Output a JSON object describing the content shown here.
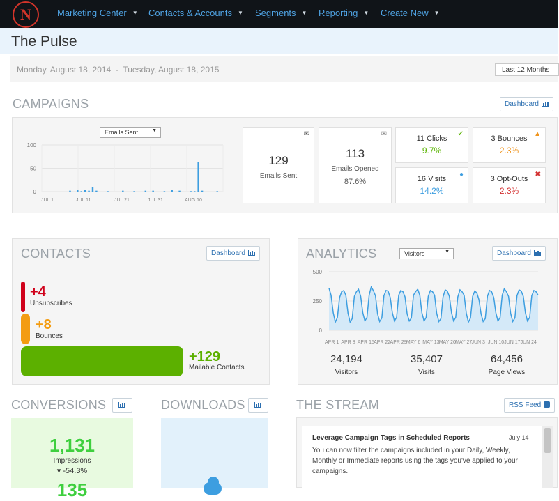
{
  "nav": {
    "logo_letter": "N",
    "items": [
      {
        "label": "Marketing Center"
      },
      {
        "label": "Contacts & Accounts"
      },
      {
        "label": "Segments"
      },
      {
        "label": "Reporting"
      },
      {
        "label": "Create New"
      }
    ]
  },
  "page": {
    "title": "The Pulse",
    "date_range": "Monday, August 18, 2014  -  Tuesday, August 18, 2015",
    "period": "Last 12 Months"
  },
  "campaigns": {
    "title": "CAMPAIGNS",
    "dashboard_label": "Dashboard",
    "metric_select": "Emails Sent",
    "stats": [
      {
        "value": "129",
        "label": "Emails Sent",
        "icon": "envelope-icon"
      },
      {
        "value": "113",
        "label": "Emails Opened",
        "pct": "87.6%",
        "icon": "envelope-open-icon"
      }
    ],
    "small_stats": [
      {
        "label": "11 Clicks",
        "pct": "9.7%",
        "pct_color": "#59b300",
        "icon": "check-icon",
        "icon_color": "#59b300"
      },
      {
        "label": "3 Bounces",
        "pct": "2.3%",
        "pct_color": "#f0951e",
        "icon": "warning-icon",
        "icon_color": "#f0951e"
      },
      {
        "label": "16 Visits",
        "pct": "14.2%",
        "pct_color": "#3d9ee0",
        "icon": "globe-icon",
        "icon_color": "#3d9ee0"
      },
      {
        "label": "3 Opt-Outs",
        "pct": "2.3%",
        "pct_color": "#d32f2f",
        "icon": "close-icon",
        "icon_color": "#d32f2f"
      }
    ]
  },
  "contacts": {
    "title": "CONTACTS",
    "dashboard_label": "Dashboard",
    "rows": [
      {
        "value": "+4",
        "label": "Unsubscribes",
        "color": "#d0021b"
      },
      {
        "value": "+8",
        "label": "Bounces",
        "color": "#f39c12"
      },
      {
        "value": "+129",
        "label": "Mailable Contacts",
        "color": "#5cb000"
      }
    ]
  },
  "analytics": {
    "title": "ANALYTICS",
    "metric_select": "Visitors",
    "dashboard_label": "Dashboard",
    "stats": [
      {
        "value": "24,194",
        "label": "Visitors"
      },
      {
        "value": "35,407",
        "label": "Visits"
      },
      {
        "value": "64,456",
        "label": "Page Views"
      }
    ]
  },
  "conversions": {
    "title": "CONVERSIONS",
    "impressions_value": "1,131",
    "impressions_label": "Impressions",
    "impressions_change": "▾ -54.3%",
    "second_value": "135"
  },
  "downloads": {
    "title": "DOWNLOADS"
  },
  "stream": {
    "title": "THE STREAM",
    "rss_label": "RSS Feed",
    "item": {
      "title": "Leverage Campaign Tags in Scheduled Reports",
      "date": "July 14",
      "body_lines": [
        "You can now filter the campaigns included in your Daily, Weekly,",
        "Monthly or Immediate reports using the tags you've applied to your",
        "campaigns."
      ]
    }
  },
  "chart_data": [
    {
      "type": "bar",
      "title": "",
      "ylim": [
        0,
        100
      ],
      "yticks": [
        "100",
        "50",
        "0"
      ],
      "x_tick_labels": [
        "JUL 1",
        "JUL 11",
        "JUL 21",
        "JUL 31",
        "AUG 10"
      ],
      "x_days": [
        1,
        2,
        3,
        4,
        5,
        6,
        7,
        8,
        9,
        10,
        11,
        12,
        13,
        14,
        15,
        16,
        17,
        18,
        19,
        20,
        21,
        22,
        23,
        24,
        25,
        26,
        27,
        28,
        29,
        30,
        31,
        32,
        33,
        34,
        35,
        36,
        37,
        38,
        39,
        40,
        41,
        42,
        43,
        44,
        45,
        46,
        47,
        48
      ],
      "values": [
        0,
        0,
        0,
        0,
        0,
        0,
        0,
        2,
        0,
        3,
        1,
        3,
        2,
        9,
        2,
        0,
        0,
        1,
        0,
        0,
        0,
        2,
        0,
        0,
        1,
        0,
        0,
        2,
        0,
        2,
        0,
        0,
        1,
        0,
        3,
        0,
        2,
        0,
        0,
        1,
        1,
        63,
        2,
        0,
        0,
        0,
        1,
        0
      ],
      "color": "#3d9ee0",
      "grid": true
    },
    {
      "type": "area",
      "title": "",
      "ylim": [
        0,
        500
      ],
      "yticks": [
        "500",
        "250",
        "0"
      ],
      "x_tick_labels": [
        "APR 1",
        "APR 8",
        "APR 15",
        "APR 22",
        "APR 29",
        "MAY 6",
        "MAY 13",
        "MAY 20",
        "MAY 27",
        "JUN 3",
        "JUN 10",
        "JUN 17",
        "JUN 24"
      ],
      "values": [
        360,
        300,
        150,
        70,
        110,
        280,
        330,
        340,
        300,
        145,
        70,
        100,
        290,
        330,
        350,
        290,
        150,
        80,
        110,
        300,
        370,
        340,
        295,
        140,
        75,
        105,
        295,
        340,
        335,
        280,
        150,
        80,
        110,
        300,
        340,
        330,
        285,
        140,
        80,
        105,
        300,
        330,
        350,
        300,
        150,
        80,
        110,
        290,
        340,
        330,
        300,
        145,
        75,
        100,
        285,
        345,
        335,
        290,
        150,
        80,
        110,
        285,
        345,
        330,
        300,
        145,
        70,
        105,
        290,
        335,
        320,
        260,
        140,
        75,
        100,
        290,
        340,
        330,
        280,
        150,
        80,
        110,
        300,
        355,
        330,
        290,
        145,
        75,
        105,
        295,
        345,
        335,
        290,
        150,
        80,
        110,
        295,
        340,
        330,
        300
      ],
      "color": "#3d9ee0",
      "fill": "#d4e9f8",
      "grid": true
    }
  ]
}
